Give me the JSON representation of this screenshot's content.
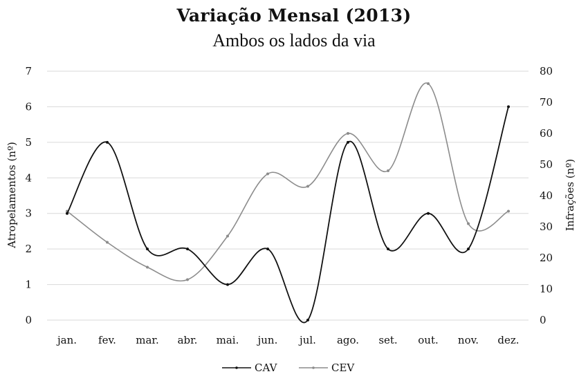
{
  "chart_data": {
    "type": "line",
    "title": "Variação Mensal (2013)",
    "subtitle": "Ambos os lados da via",
    "categories": [
      "jan.",
      "fev.",
      "mar.",
      "abr.",
      "mai.",
      "jun.",
      "jul.",
      "ago.",
      "set.",
      "out.",
      "nov.",
      "dez."
    ],
    "y_left": {
      "label": "Atropelamentos  (nº)",
      "range": [
        0,
        7
      ],
      "ticks": [
        0,
        1,
        2,
        3,
        4,
        5,
        6,
        7
      ]
    },
    "y_right": {
      "label": "Infrações  (nº)",
      "range": [
        0,
        80
      ],
      "ticks": [
        0,
        10,
        20,
        30,
        40,
        50,
        60,
        70,
        80
      ]
    },
    "grid": true,
    "legend_position": "bottom",
    "series": [
      {
        "name": "CAV",
        "axis": "left",
        "color": "#111111",
        "values": [
          3,
          5,
          2,
          2,
          1,
          2,
          0,
          5,
          2,
          3,
          2,
          6
        ]
      },
      {
        "name": "CEV",
        "axis": "right",
        "color": "#8c8c8c",
        "values": [
          35,
          25,
          17,
          13,
          27,
          47,
          43,
          60,
          48,
          76,
          31,
          35
        ]
      }
    ]
  }
}
